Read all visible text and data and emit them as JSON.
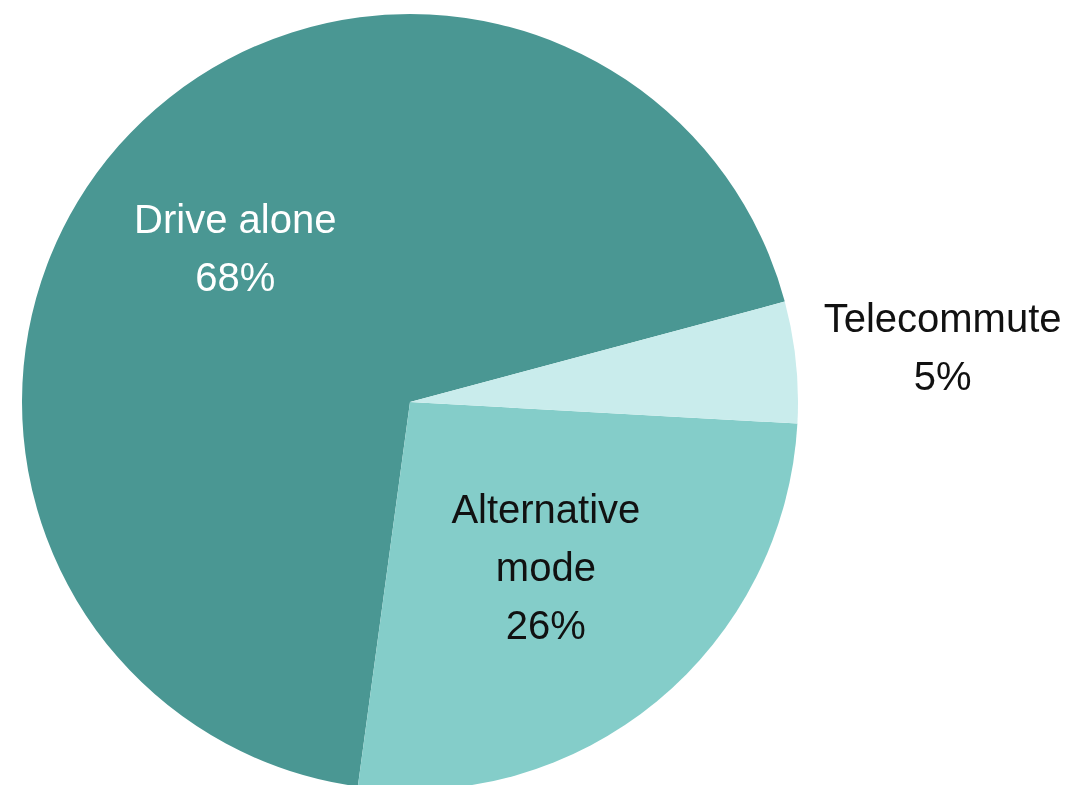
{
  "chart_data": {
    "type": "pie",
    "categories": [
      "Drive alone",
      "Alternative mode",
      "Telecommute"
    ],
    "values": [
      68,
      26,
      5
    ],
    "value_labels": [
      "68%",
      "26%",
      "5%"
    ],
    "colors": [
      "#4a9793",
      "#84cdc9",
      "#c9ecec"
    ],
    "legend": false
  }
}
